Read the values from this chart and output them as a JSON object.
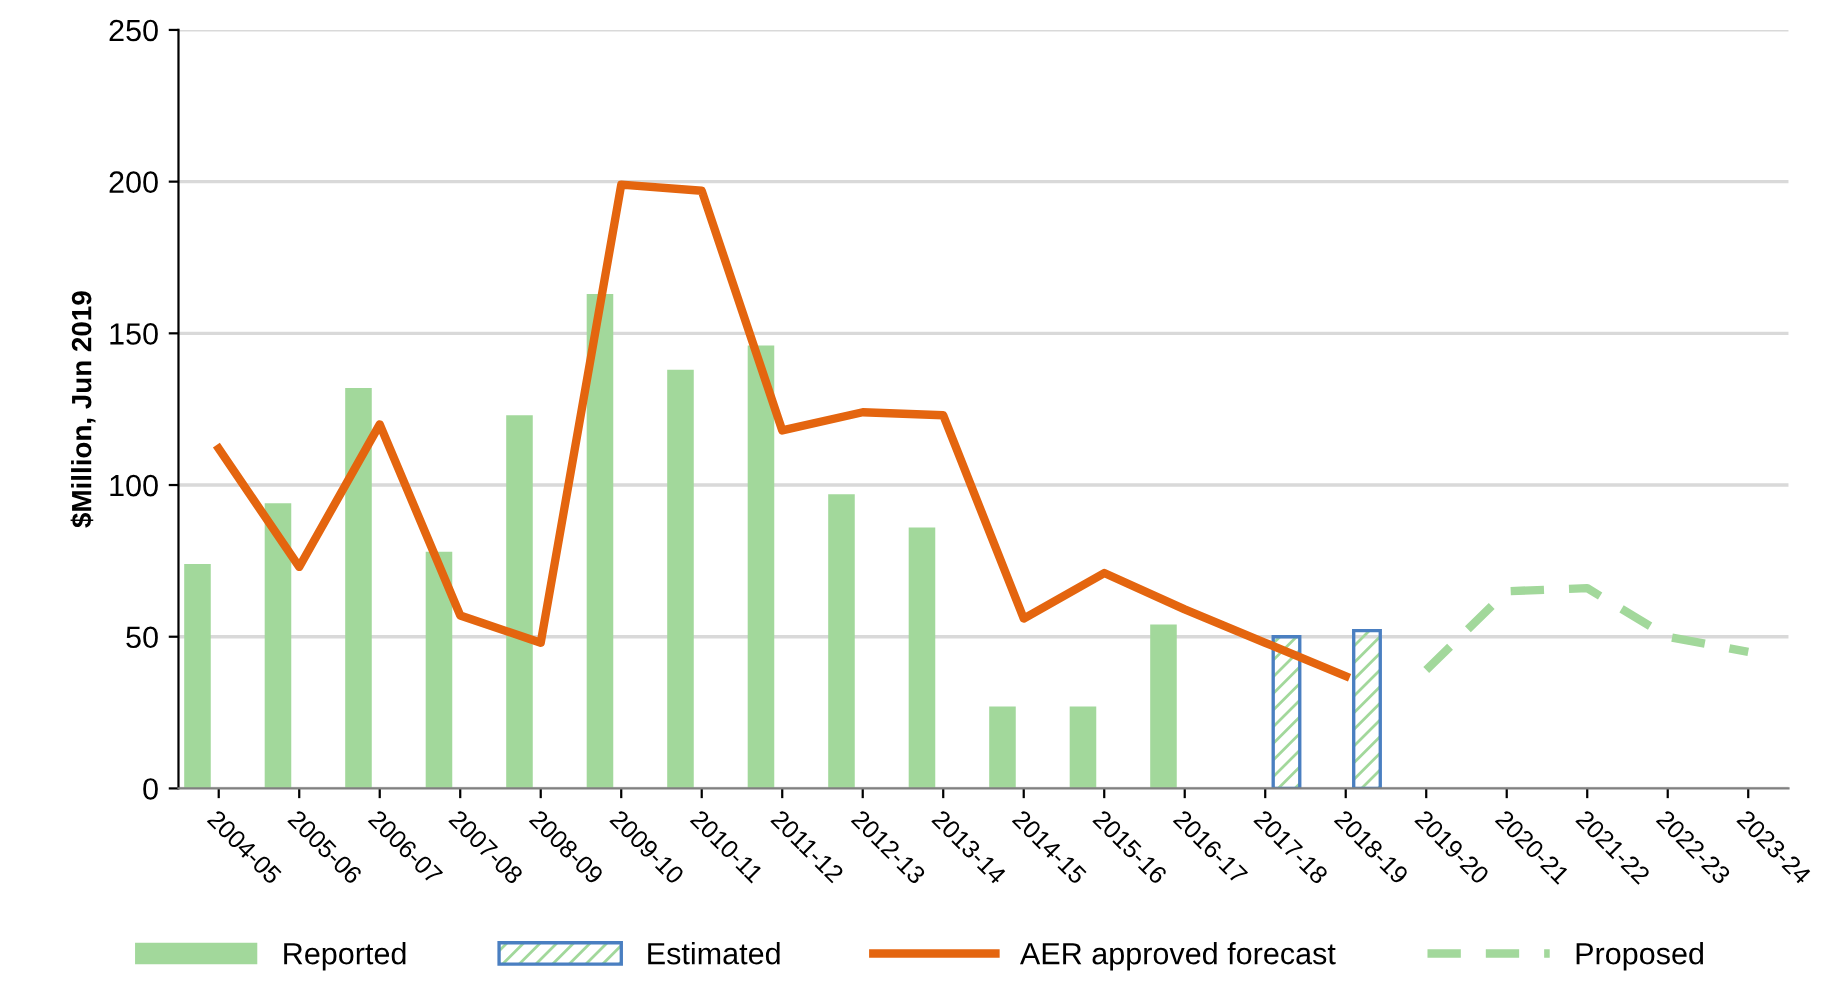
{
  "chart_data": {
    "type": "bar",
    "ylabel": "$Million, Jun 2019",
    "categories": [
      "2004-05",
      "2005-06",
      "2006-07",
      "2007-08",
      "2008-09",
      "2009-10",
      "2010-11",
      "2011-12",
      "2012-13",
      "2013-14",
      "2014-15",
      "2015-16",
      "2016-17",
      "2017-18",
      "2018-19",
      "2019-20",
      "2020-21",
      "2021-22",
      "2022-23",
      "2023-24"
    ],
    "series": [
      {
        "name": "Reported",
        "color": "#a2d89b",
        "values": [
          74,
          94,
          132,
          78,
          123,
          163,
          138,
          146,
          97,
          86,
          27,
          27,
          54,
          null,
          null,
          null,
          null,
          null,
          null,
          null
        ]
      },
      {
        "name": "Estimated",
        "color": "#4a7fc1",
        "values": [
          null,
          null,
          null,
          null,
          null,
          null,
          null,
          null,
          null,
          null,
          null,
          null,
          null,
          50,
          52,
          null,
          null,
          null,
          null,
          null
        ]
      },
      {
        "name": "AER approved forecast",
        "type": "line",
        "color": "#e4650f",
        "line_style": "solid",
        "values": [
          112,
          73,
          120,
          57,
          48,
          199,
          197,
          118,
          124,
          123,
          56,
          71,
          59,
          48,
          37,
          null,
          null,
          null,
          null,
          null
        ]
      },
      {
        "name": "Proposed",
        "type": "line",
        "color": "#a2d89b",
        "line_style": "dashed",
        "values": [
          null,
          null,
          null,
          null,
          null,
          null,
          null,
          null,
          null,
          null,
          null,
          null,
          null,
          null,
          null,
          39,
          65,
          66,
          50,
          45
        ]
      }
    ],
    "ylim": [
      0,
      250
    ],
    "yticks": [
      0,
      50,
      100,
      150,
      200,
      250
    ],
    "grid": "y",
    "legend": "bottom"
  }
}
